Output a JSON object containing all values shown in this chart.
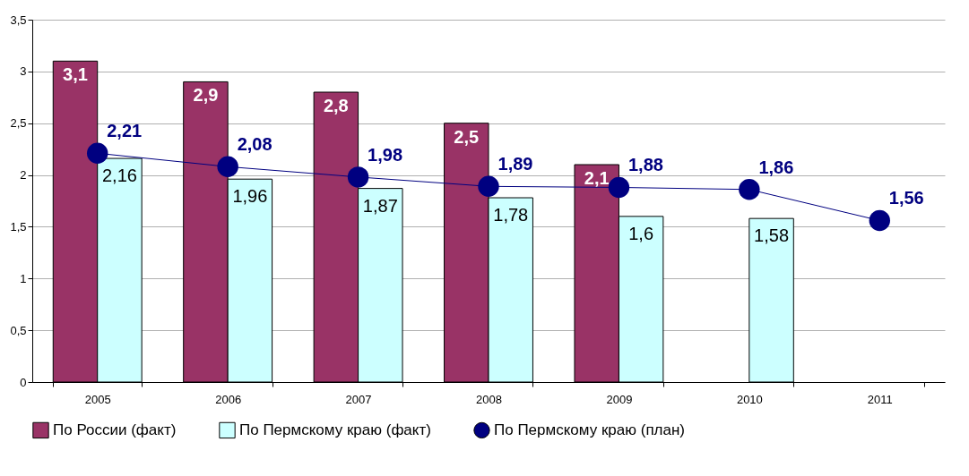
{
  "chart_data": {
    "type": "bar",
    "categories": [
      "2005",
      "2006",
      "2007",
      "2008",
      "2009",
      "2010",
      "2011"
    ],
    "series": [
      {
        "name": "По России (факт)",
        "color": "#993366",
        "values": [
          3.1,
          2.9,
          2.8,
          2.5,
          2.1,
          null,
          null
        ],
        "value_labels": [
          "3,1",
          "2,9",
          "2,8",
          "2,5",
          "2,1",
          null,
          null
        ]
      },
      {
        "name": "По Пермскому краю (факт)",
        "color": "#ccffff",
        "values": [
          2.16,
          1.96,
          1.87,
          1.78,
          1.6,
          1.58,
          null
        ],
        "value_labels": [
          "2,16",
          "1,96",
          "1,87",
          "1,78",
          "1,6",
          "1,58",
          null
        ]
      },
      {
        "name": "По Пермскому краю (план)",
        "type": "line",
        "color": "#000080",
        "marker": "circle",
        "values": [
          2.21,
          2.08,
          1.98,
          1.89,
          1.88,
          1.86,
          1.56
        ],
        "value_labels": [
          "2,21",
          "2,08",
          "1,98",
          "1,89",
          "1,88",
          "1,86",
          "1,56"
        ]
      }
    ],
    "ylim": [
      0,
      3.5
    ],
    "yticks": [
      0,
      {
        "value": 0.5,
        "label": "0,5"
      },
      1,
      {
        "value": 1.5,
        "label": "1,5"
      },
      2,
      {
        "value": 2.5,
        "label": "2,5"
      },
      3,
      {
        "value": 3.5,
        "label": "3,5"
      }
    ],
    "grid": "y",
    "legend": "bottom"
  }
}
